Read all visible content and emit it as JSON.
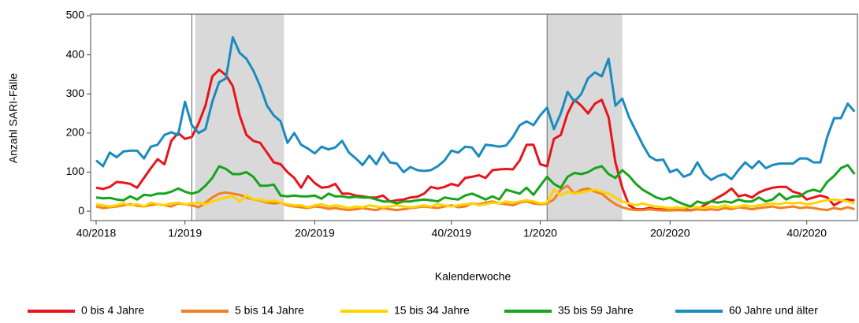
{
  "chart_data": {
    "type": "line",
    "x_label": "Kalenderwoche",
    "y_label": "Anzahl SARI-Fälle",
    "categories": [
      "40/2018",
      null,
      null,
      null,
      null,
      null,
      null,
      null,
      null,
      null,
      null,
      null,
      null,
      "1/2019",
      null,
      null,
      null,
      null,
      null,
      null,
      null,
      null,
      null,
      null,
      null,
      null,
      null,
      null,
      null,
      null,
      null,
      null,
      "20/2019",
      null,
      null,
      null,
      null,
      null,
      null,
      null,
      null,
      null,
      null,
      null,
      null,
      null,
      null,
      null,
      null,
      null,
      null,
      null,
      "40/2019",
      null,
      null,
      null,
      null,
      null,
      null,
      null,
      null,
      null,
      null,
      null,
      null,
      "1/2020",
      null,
      null,
      null,
      null,
      null,
      null,
      null,
      null,
      null,
      null,
      null,
      null,
      null,
      null,
      null,
      null,
      null,
      null,
      "20/2020",
      null,
      null,
      null,
      null,
      null,
      null,
      null,
      null,
      null,
      null,
      null,
      null,
      null,
      null,
      null,
      null,
      null,
      null,
      null,
      "40/2020",
      null,
      null,
      null,
      null,
      null,
      null,
      null
    ],
    "series": [
      {
        "name": "0 bis 4 Jahre",
        "color": "#e8141c",
        "values": [
          60,
          57,
          62,
          75,
          73,
          70,
          60,
          85,
          110,
          133,
          120,
          180,
          200,
          185,
          190,
          225,
          270,
          345,
          362,
          348,
          320,
          245,
          195,
          180,
          175,
          150,
          125,
          120,
          100,
          85,
          60,
          90,
          72,
          60,
          62,
          70,
          45,
          45,
          40,
          38,
          35,
          35,
          40,
          25,
          28,
          30,
          35,
          37,
          45,
          62,
          58,
          62,
          70,
          65,
          85,
          88,
          92,
          85,
          105,
          107,
          108,
          107,
          130,
          170,
          170,
          120,
          115,
          185,
          195,
          250,
          285,
          270,
          250,
          275,
          285,
          240,
          125,
          60,
          15,
          5,
          5,
          8,
          5,
          5,
          3,
          3,
          5,
          3,
          5,
          15,
          25,
          35,
          45,
          58,
          38,
          42,
          35,
          48,
          55,
          60,
          62,
          62,
          50,
          45,
          30,
          35,
          40,
          35,
          15,
          25,
          30,
          28
        ]
      },
      {
        "name": "5 bis 14 Jahre",
        "color": "#f28020",
        "values": [
          12,
          8,
          10,
          12,
          15,
          18,
          14,
          12,
          16,
          18,
          15,
          12,
          20,
          18,
          15,
          10,
          22,
          35,
          45,
          48,
          45,
          42,
          35,
          30,
          28,
          22,
          20,
          22,
          15,
          12,
          10,
          8,
          12,
          10,
          6,
          8,
          5,
          3,
          5,
          8,
          5,
          3,
          8,
          5,
          3,
          5,
          8,
          10,
          12,
          10,
          8,
          12,
          15,
          10,
          12,
          20,
          18,
          22,
          25,
          20,
          18,
          15,
          22,
          25,
          20,
          18,
          20,
          30,
          55,
          65,
          45,
          55,
          58,
          50,
          45,
          30,
          18,
          10,
          5,
          3,
          3,
          5,
          3,
          2,
          2,
          3,
          2,
          2,
          5,
          3,
          5,
          3,
          8,
          5,
          10,
          8,
          5,
          8,
          10,
          12,
          8,
          10,
          12,
          8,
          10,
          8,
          5,
          3,
          8,
          5,
          10,
          5
        ]
      },
      {
        "name": "15 bis 34 Jahre",
        "color": "#ffd400",
        "values": [
          18,
          15,
          12,
          15,
          20,
          15,
          18,
          12,
          22,
          18,
          15,
          20,
          22,
          18,
          20,
          22,
          18,
          25,
          30,
          35,
          38,
          25,
          40,
          30,
          30,
          25,
          28,
          22,
          18,
          15,
          15,
          10,
          15,
          18,
          12,
          15,
          12,
          8,
          12,
          10,
          15,
          12,
          10,
          12,
          15,
          12,
          10,
          12,
          15,
          12,
          18,
          15,
          12,
          15,
          18,
          20,
          15,
          18,
          22,
          20,
          25,
          22,
          25,
          28,
          25,
          20,
          22,
          55,
          40,
          50,
          45,
          48,
          52,
          55,
          50,
          45,
          35,
          25,
          20,
          15,
          20,
          15,
          12,
          10,
          8,
          10,
          8,
          12,
          10,
          8,
          12,
          10,
          15,
          10,
          12,
          15,
          12,
          15,
          18,
          20,
          18,
          22,
          20,
          22,
          18,
          20,
          25,
          28,
          30,
          28,
          25,
          20
        ]
      },
      {
        "name": "35 bis 59 Jahre",
        "color": "#15a41a",
        "values": [
          35,
          33,
          34,
          30,
          28,
          38,
          30,
          42,
          40,
          45,
          45,
          50,
          58,
          50,
          45,
          50,
          65,
          85,
          115,
          108,
          95,
          95,
          100,
          88,
          65,
          65,
          68,
          40,
          38,
          40,
          38,
          38,
          40,
          32,
          45,
          38,
          38,
          35,
          37,
          35,
          35,
          30,
          25,
          25,
          20,
          25,
          25,
          28,
          30,
          28,
          25,
          35,
          32,
          30,
          40,
          45,
          38,
          30,
          38,
          30,
          55,
          50,
          45,
          60,
          42,
          65,
          88,
          70,
          60,
          88,
          98,
          95,
          100,
          110,
          115,
          95,
          85,
          105,
          90,
          70,
          55,
          45,
          35,
          30,
          35,
          25,
          18,
          12,
          25,
          20,
          25,
          22,
          25,
          22,
          30,
          25,
          25,
          35,
          25,
          30,
          45,
          30,
          38,
          38,
          50,
          55,
          50,
          75,
          90,
          110,
          118,
          95
        ]
      },
      {
        "name": "60 Jahre und älter",
        "color": "#1a8bbf",
        "values": [
          130,
          115,
          150,
          138,
          153,
          155,
          155,
          135,
          165,
          170,
          195,
          202,
          195,
          280,
          220,
          200,
          210,
          280,
          330,
          340,
          445,
          405,
          390,
          360,
          320,
          270,
          245,
          230,
          175,
          200,
          170,
          160,
          148,
          165,
          158,
          163,
          180,
          150,
          135,
          118,
          142,
          120,
          150,
          125,
          122,
          100,
          113,
          105,
          103,
          105,
          115,
          130,
          155,
          150,
          165,
          163,
          140,
          170,
          168,
          165,
          168,
          190,
          220,
          230,
          220,
          245,
          265,
          210,
          250,
          305,
          280,
          300,
          340,
          355,
          345,
          390,
          270,
          288,
          240,
          205,
          170,
          140,
          130,
          132,
          100,
          107,
          88,
          95,
          125,
          95,
          80,
          90,
          95,
          82,
          105,
          125,
          110,
          128,
          110,
          118,
          122,
          122,
          122,
          135,
          135,
          125,
          125,
          190,
          238,
          238,
          275,
          255
        ]
      }
    ],
    "highlight_ranges": [
      [
        14.5,
        27.5
      ],
      [
        66,
        77
      ]
    ],
    "vlines": [
      14,
      66
    ],
    "ylim": [
      -24,
      504
    ],
    "yticks": [
      0,
      100,
      200,
      300,
      400,
      500
    ]
  }
}
